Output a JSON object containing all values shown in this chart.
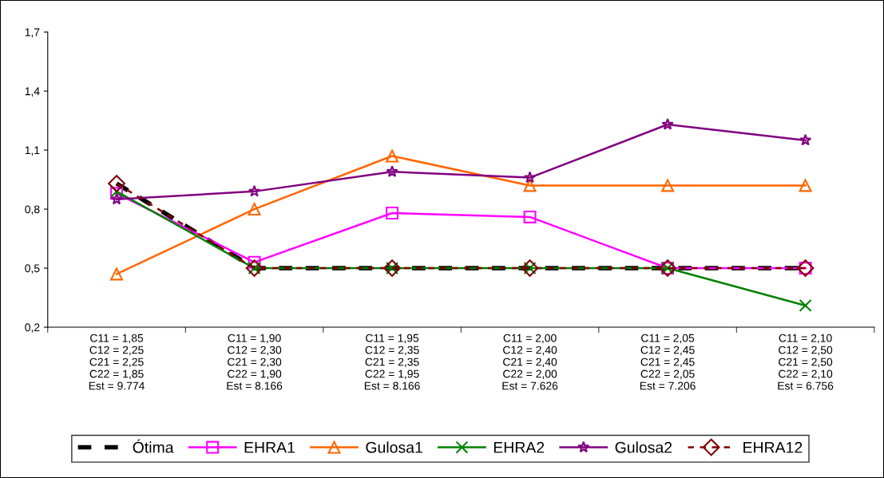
{
  "chart_data": {
    "type": "line",
    "categories": [
      "C11 = 1,85\nC12 = 2,25\nC21 = 2,25\nC22 = 1,85\nEst = 9.774",
      "C11 = 1,90\nC12 = 2,30\nC21 = 2,30\nC22 = 1,90\nEst = 8.166",
      "C11 = 1,95\nC12 = 2,35\nC21 = 2,35\nC22 = 1,95\nEst = 8.166",
      "C11 = 2,00\nC12 = 2,40\nC21 = 2,40\nC22 = 2,00\nEst = 7.626",
      "C11 = 2,05\nC12 = 2,45\nC21 = 2,45\nC22 = 2,05\nEst = 7.206",
      "C11 = 2,10\nC12 = 2,50\nC21 = 2,50\nC22 = 2,10\nEst = 6.756"
    ],
    "series": [
      {
        "name": "Ótima",
        "color": "#000000",
        "marker": "none",
        "line_style": "dashed",
        "values": [
          0.93,
          0.5,
          0.5,
          0.5,
          0.5,
          0.5
        ]
      },
      {
        "name": "EHRA1",
        "color": "#ff00ff",
        "marker": "square",
        "line_style": "solid",
        "values": [
          0.88,
          0.53,
          0.78,
          0.76,
          0.5,
          0.5
        ]
      },
      {
        "name": "Gulosa1",
        "color": "#ff6600",
        "marker": "triangle",
        "line_style": "solid",
        "values": [
          0.47,
          0.8,
          1.07,
          0.92,
          0.92,
          0.92
        ]
      },
      {
        "name": "EHRA2",
        "color": "#008000",
        "marker": "cross",
        "line_style": "solid",
        "values": [
          0.89,
          0.5,
          0.5,
          0.5,
          0.5,
          0.31
        ]
      },
      {
        "name": "Gulosa2",
        "color": "#800080",
        "marker": "star",
        "line_style": "solid",
        "values": [
          0.85,
          0.89,
          0.99,
          0.96,
          1.23,
          1.15
        ]
      },
      {
        "name": "EHRA12",
        "color": "#800000",
        "marker": "diamond",
        "line_style": "dashed",
        "values": [
          0.93,
          0.5,
          0.5,
          0.5,
          0.5,
          0.5
        ]
      }
    ],
    "ylim": [
      0.2,
      1.7
    ],
    "yticks": [
      {
        "value": 0.2,
        "label": "0,2"
      },
      {
        "value": 0.5,
        "label": "0,5"
      },
      {
        "value": 0.8,
        "label": "0,8"
      },
      {
        "value": 1.1,
        "label": "1,1"
      },
      {
        "value": 1.4,
        "label": "1,4"
      },
      {
        "value": 1.7,
        "label": "1,7"
      }
    ],
    "grid": false,
    "legend": "bottom"
  }
}
